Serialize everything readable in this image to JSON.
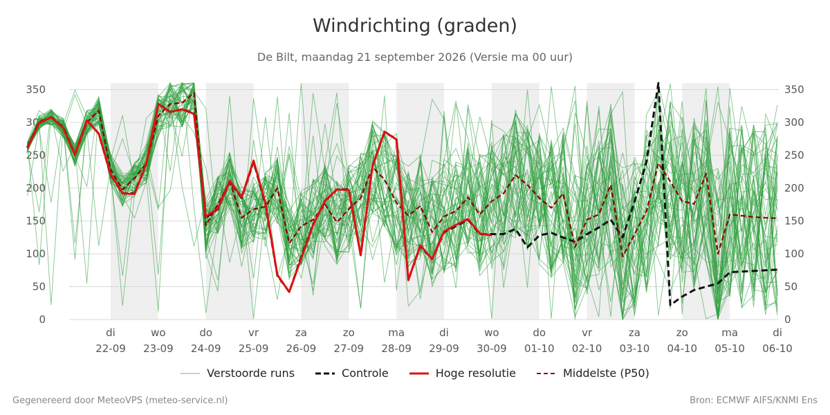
{
  "chart_data": {
    "type": "line",
    "title": "Windrichting (graden)",
    "subtitle": "De Bilt, maandag 21 september 2026 (Versie ma 00 uur)",
    "xlabel": "",
    "ylabel": "",
    "ylim": [
      0,
      360
    ],
    "yticks": [
      0,
      50,
      100,
      150,
      200,
      250,
      300,
      350
    ],
    "grid": true,
    "legend_position": "bottom",
    "x_days": [
      {
        "weekday": "di",
        "date": "22-09",
        "day": 1
      },
      {
        "weekday": "wo",
        "date": "23-09",
        "day": 2
      },
      {
        "weekday": "do",
        "date": "24-09",
        "day": 3
      },
      {
        "weekday": "vr",
        "date": "25-09",
        "day": 4
      },
      {
        "weekday": "za",
        "date": "26-09",
        "day": 5
      },
      {
        "weekday": "zo",
        "date": "27-09",
        "day": 6
      },
      {
        "weekday": "ma",
        "date": "28-09",
        "day": 7
      },
      {
        "weekday": "di",
        "date": "29-09",
        "day": 8
      },
      {
        "weekday": "wo",
        "date": "30-09",
        "day": 9
      },
      {
        "weekday": "do",
        "date": "01-10",
        "day": 10
      },
      {
        "weekday": "vr",
        "date": "02-10",
        "day": 11
      },
      {
        "weekday": "za",
        "date": "03-10",
        "day": 12
      },
      {
        "weekday": "zo",
        "date": "04-10",
        "day": 13
      },
      {
        "weekday": "ma",
        "date": "05-10",
        "day": 14
      },
      {
        "weekday": "di",
        "date": "06-10",
        "day": 15
      }
    ],
    "x_range_days": [
      -0.75,
      15
    ],
    "shaded_days": [
      [
        1,
        2
      ],
      [
        3,
        4
      ],
      [
        5,
        6
      ],
      [
        7,
        8
      ],
      [
        9,
        10
      ],
      [
        11,
        12
      ],
      [
        13,
        14
      ]
    ],
    "colors": {
      "ensemble": "#2e9e3e",
      "controle": "#111111",
      "hoge_resolutie": "#dd1111",
      "p50": "#8b0000",
      "shade": "#efefef",
      "grid": "#d9d9d9"
    },
    "series": [
      {
        "name": "Controle",
        "style": "dashed",
        "x": [
          -0.75,
          -0.5,
          -0.25,
          0,
          0.25,
          0.5,
          0.75,
          1,
          1.25,
          1.5,
          1.75,
          2,
          2.25,
          2.5,
          2.75,
          3,
          3.25,
          3.5,
          3.75,
          4,
          4.25,
          4.5,
          4.75,
          5,
          5.25,
          5.5,
          5.75,
          6,
          6.25,
          6.5,
          6.75,
          7,
          7.25,
          7.5,
          7.75,
          8,
          8.25,
          8.5,
          8.75,
          9,
          9.25,
          9.5,
          9.75,
          10,
          10.25,
          10.5,
          10.75,
          11,
          11.25,
          11.5,
          11.75,
          12,
          12.25,
          12.5,
          12.75,
          13,
          13.25,
          13.5,
          13.75,
          14,
          14.25,
          14.5,
          14.75,
          15
        ],
        "values": [
          262,
          300,
          308,
          293,
          251,
          303,
          283,
          220,
          192,
          192,
          237,
          328,
          316,
          320,
          314,
          155,
          168,
          210,
          185,
          240,
          175,
          67,
          42,
          95,
          145,
          180,
          198,
          198,
          98,
          235,
          285,
          275,
          60,
          112,
          92,
          133,
          142,
          152,
          130,
          130,
          130,
          138,
          110,
          128,
          132,
          125,
          118,
          130,
          140,
          152,
          125,
          180,
          240,
          360,
          22,
          35,
          45,
          50,
          55,
          72,
          73,
          74,
          75,
          76
        ]
      },
      {
        "name": "Hoge resolutie",
        "style": "solid",
        "x": [
          -0.75,
          -0.5,
          -0.25,
          0,
          0.25,
          0.5,
          0.75,
          1,
          1.25,
          1.5,
          1.75,
          2,
          2.25,
          2.5,
          2.75,
          3,
          3.25,
          3.5,
          3.75,
          4,
          4.25,
          4.5,
          4.75,
          5,
          5.25,
          5.5,
          5.75,
          6,
          6.25,
          6.5,
          6.75,
          7,
          7.25,
          7.5,
          7.75,
          8,
          8.25,
          8.5,
          8.75,
          9
        ],
        "values": [
          261,
          299,
          308,
          292,
          251,
          303,
          283,
          221,
          192,
          191,
          237,
          328,
          316,
          320,
          313,
          157,
          169,
          211,
          186,
          242,
          177,
          68,
          42,
          93,
          144,
          181,
          198,
          197,
          98,
          234,
          286,
          274,
          60,
          113,
          92,
          134,
          144,
          153,
          131,
          128
        ]
      },
      {
        "name": "Middelste (P50)",
        "style": "dashed",
        "x": [
          -0.75,
          -0.5,
          -0.25,
          0,
          0.25,
          0.5,
          0.75,
          1,
          1.25,
          1.5,
          1.75,
          2,
          2.25,
          2.5,
          2.75,
          3,
          3.25,
          3.5,
          3.75,
          4,
          4.25,
          4.5,
          4.75,
          5,
          5.25,
          5.5,
          5.75,
          6,
          6.25,
          6.5,
          6.75,
          7,
          7.25,
          7.5,
          7.75,
          8,
          8.25,
          8.5,
          8.75,
          9,
          9.25,
          9.5,
          9.75,
          10,
          10.25,
          10.5,
          10.75,
          11,
          11.25,
          11.5,
          11.75,
          12,
          12.25,
          12.5,
          12.75,
          13,
          13.25,
          13.5,
          13.75,
          14,
          14.25,
          14.5,
          14.75,
          15
        ],
        "values": [
          262,
          300,
          308,
          292,
          250,
          300,
          318,
          228,
          198,
          215,
          237,
          310,
          328,
          330,
          345,
          143,
          175,
          210,
          155,
          168,
          172,
          200,
          116,
          142,
          152,
          175,
          148,
          168,
          185,
          232,
          213,
          178,
          158,
          173,
          133,
          157,
          165,
          186,
          160,
          180,
          192,
          220,
          205,
          185,
          170,
          192,
          110,
          152,
          160,
          205,
          96,
          130,
          165,
          238,
          210,
          180,
          176,
          222,
          100,
          160,
          158,
          156,
          155,
          154
        ]
      },
      {
        "name": "Verstoorde runs",
        "style": "thin",
        "member_count": 50,
        "values_range": [
          0,
          360
        ]
      }
    ]
  },
  "legend": [
    {
      "key": "ensemble",
      "label": "Verstoorde runs"
    },
    {
      "key": "controle",
      "label": "Controle"
    },
    {
      "key": "hoge_resolutie",
      "label": "Hoge resolutie"
    },
    {
      "key": "p50",
      "label": "Middelste (P50)"
    }
  ],
  "footer": {
    "left": "Gegenereerd door MeteoVPS (meteo-service.nl)",
    "right": "Bron: ECMWF AIFS/KNMI Ens"
  }
}
